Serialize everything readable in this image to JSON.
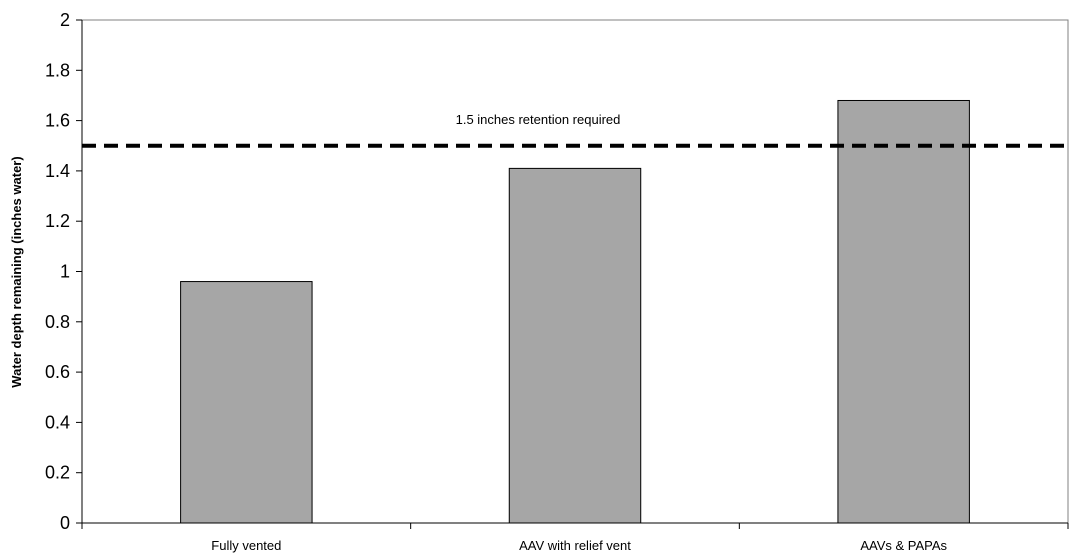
{
  "chart_data": {
    "type": "bar",
    "title": "",
    "xlabel": "",
    "ylabel": "Water depth remaining (inches water)",
    "categories": [
      "Fully vented",
      "AAV with relief vent",
      "AAVs & PAPAs"
    ],
    "values": [
      0.96,
      1.41,
      1.68
    ],
    "ylim": [
      0,
      2
    ],
    "yticks": [
      "0",
      "0.2",
      "0.4",
      "0.6",
      "0.8",
      "1",
      "1.2",
      "1.4",
      "1.6",
      "1.8",
      "2"
    ],
    "grid": false,
    "legend": "none",
    "bar_color": "#a6a6a6",
    "reference_line": {
      "value": 1.5,
      "label": "1.5 inches retention required",
      "style": "dashed",
      "color": "#000000"
    }
  }
}
